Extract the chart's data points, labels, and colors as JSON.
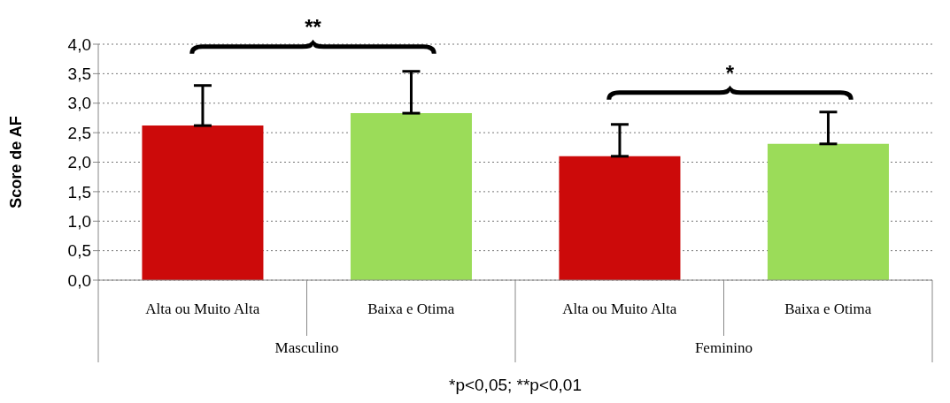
{
  "chart_data": {
    "type": "bar",
    "ylabel": "Score de AF",
    "categories": [
      "Alta ou Muito Alta",
      "Baixa e Otima",
      "Alta ou Muito Alta",
      "Baixa e Otima"
    ],
    "values": [
      2.62,
      2.83,
      2.1,
      2.31
    ],
    "colors": [
      "#cc0a0a",
      "#9bdc59",
      "#cc0a0a",
      "#9bdc59"
    ],
    "errors": [
      [
        2.62,
        3.3
      ],
      [
        2.83,
        3.54
      ],
      [
        2.1,
        2.64
      ],
      [
        2.31,
        2.85
      ]
    ],
    "ylim": [
      0,
      4
    ],
    "yticks": [
      {
        "value": 0,
        "label": "0,0"
      },
      {
        "value": 0.5,
        "label": "0,5"
      },
      {
        "value": 1,
        "label": "1,0"
      },
      {
        "value": 1.5,
        "label": "1,5"
      },
      {
        "value": 2,
        "label": "2,0"
      },
      {
        "value": 2.5,
        "label": "2,5"
      },
      {
        "value": 3,
        "label": "3,0"
      },
      {
        "value": 3.5,
        "label": "3,5"
      },
      {
        "value": 4,
        "label": "4,0"
      }
    ],
    "grid": "y",
    "legend": false,
    "annotations": [
      "**",
      "*",
      "Masculino",
      "Feminino",
      "*p<0,05; **p<0,01"
    ]
  }
}
